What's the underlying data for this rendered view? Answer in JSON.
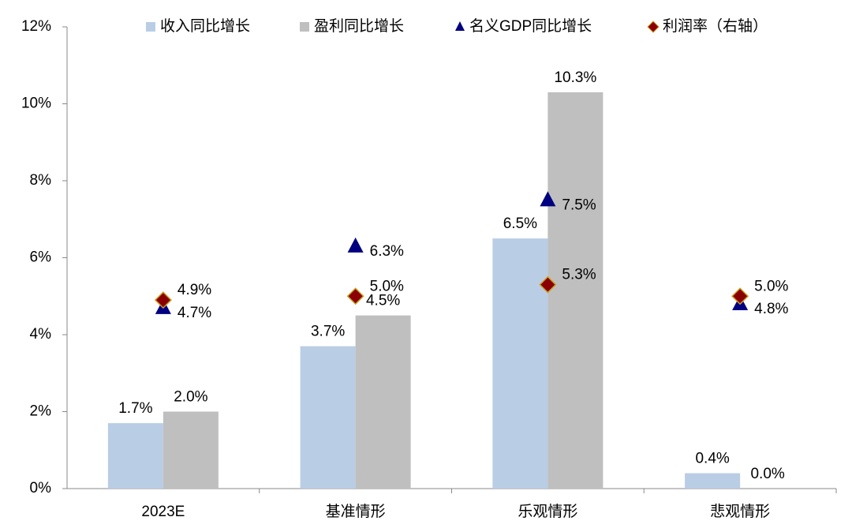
{
  "chart_data": {
    "type": "bar",
    "categories": [
      "2023E",
      "基准情形",
      "乐观情形",
      "悲观情形"
    ],
    "series": [
      {
        "name": "收入同比增长",
        "type": "bar",
        "color": "#b9cde5",
        "values": [
          1.7,
          3.7,
          6.5,
          0.4
        ],
        "value_labels": [
          "1.7%",
          "3.7%",
          "6.5%",
          "0.4%"
        ]
      },
      {
        "name": "盈利同比增长",
        "type": "bar",
        "color": "#bfbfbf",
        "values": [
          2.0,
          4.5,
          10.3,
          0.0
        ],
        "value_labels": [
          "2.0%",
          "4.5%",
          "10.3%",
          "0.0%"
        ]
      },
      {
        "name": "名义GDP同比增长",
        "type": "scatter",
        "marker": "triangle",
        "color": "#000080",
        "values": [
          4.7,
          6.3,
          7.5,
          4.8
        ],
        "value_labels": [
          "4.7%",
          "6.3%",
          "7.5%",
          "4.8%"
        ]
      },
      {
        "name": "利润率（右轴）",
        "type": "scatter",
        "marker": "diamond",
        "color": "#8b0000",
        "values": [
          4.9,
          5.0,
          5.3,
          5.0
        ],
        "value_labels": [
          "4.9%",
          "5.0%",
          "5.3%",
          "5.0%"
        ]
      }
    ],
    "ylim": [
      0,
      12
    ],
    "yticks": [
      {
        "value": 0,
        "label": "0%"
      },
      {
        "value": 2,
        "label": "2%"
      },
      {
        "value": 4,
        "label": "4%"
      },
      {
        "value": 6,
        "label": "6%"
      },
      {
        "value": 8,
        "label": "8%"
      },
      {
        "value": 10,
        "label": "10%"
      },
      {
        "value": 12,
        "label": "12%"
      }
    ],
    "grid": false
  }
}
